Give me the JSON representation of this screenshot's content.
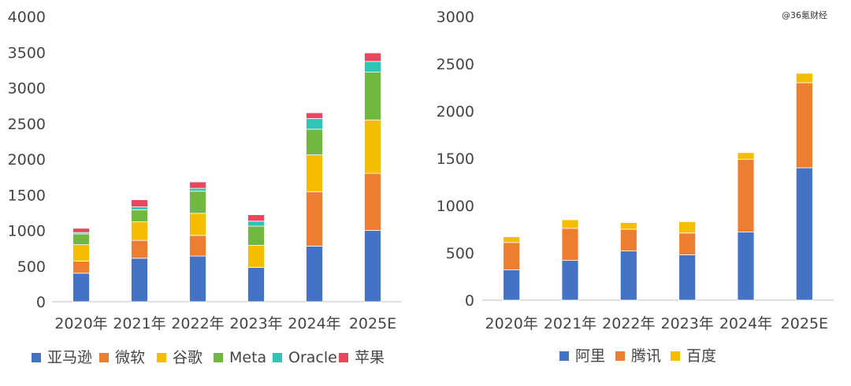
{
  "watermark": "@36氪财经",
  "chart_data": [
    {
      "type": "bar",
      "stacked": true,
      "categories": [
        "2020年",
        "2021年",
        "2022年",
        "2023年",
        "2024年",
        "2025E"
      ],
      "ylim": [
        0,
        4000
      ],
      "yticks": [
        0,
        500,
        1000,
        1500,
        2000,
        2500,
        3000,
        3500,
        4000
      ],
      "legend_position": "bottom",
      "grid": false,
      "series": [
        {
          "name": "亚马逊",
          "color": "#4472c4",
          "values": [
            400,
            610,
            640,
            480,
            780,
            1000
          ]
        },
        {
          "name": "微软",
          "color": "#ed7d31",
          "values": [
            170,
            250,
            290,
            0,
            760,
            800
          ]
        },
        {
          "name": "谷歌",
          "color": "#f5bd00",
          "values": [
            230,
            260,
            310,
            310,
            520,
            750
          ]
        },
        {
          "name": "Meta",
          "color": "#70b840",
          "values": [
            150,
            170,
            310,
            270,
            360,
            670
          ]
        },
        {
          "name": "Oracle",
          "color": "#2ec4b6",
          "values": [
            20,
            40,
            40,
            70,
            150,
            150
          ]
        },
        {
          "name": "苹果",
          "color": "#e8475f",
          "values": [
            60,
            100,
            90,
            90,
            80,
            120
          ]
        }
      ]
    },
    {
      "type": "bar",
      "stacked": true,
      "categories": [
        "2020年",
        "2021年",
        "2022年",
        "2023年",
        "2024年",
        "2025E"
      ],
      "ylim": [
        0,
        3000
      ],
      "yticks": [
        0,
        500,
        1000,
        1500,
        2000,
        2500,
        3000
      ],
      "legend_position": "bottom",
      "grid": false,
      "series": [
        {
          "name": "阿里",
          "color": "#4472c4",
          "values": [
            320,
            420,
            520,
            480,
            720,
            1400
          ]
        },
        {
          "name": "腾讯",
          "color": "#ed7d31",
          "values": [
            290,
            340,
            230,
            230,
            770,
            900
          ]
        },
        {
          "name": "百度",
          "color": "#f5bd00",
          "values": [
            60,
            90,
            70,
            120,
            70,
            100
          ]
        }
      ]
    }
  ]
}
